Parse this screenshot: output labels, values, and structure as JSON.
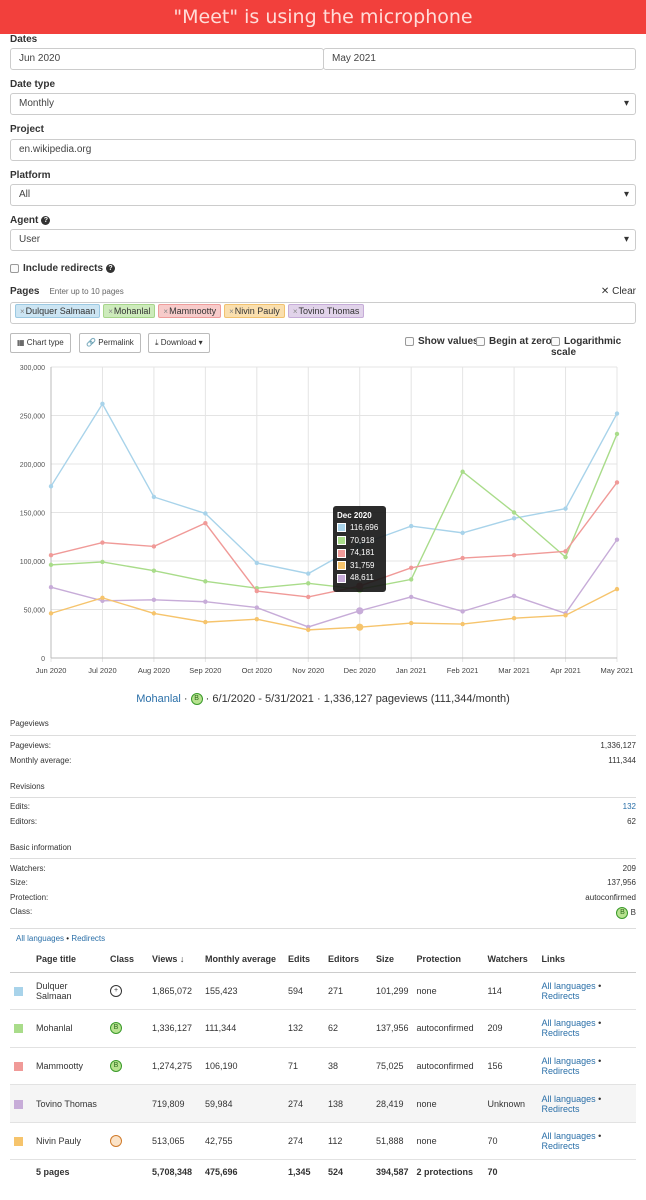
{
  "banner": "\"Meet\" is using the microphone",
  "form": {
    "dates_label": "Dates",
    "start_date": "Jun 2020",
    "end_date": "May 2021",
    "date_type_label": "Date type",
    "date_type_value": "Monthly",
    "project_label": "Project",
    "project_value": "en.wikipedia.org",
    "platform_label": "Platform",
    "platform_value": "All",
    "agent_label": "Agent",
    "agent_value": "User",
    "include_redirects_label": "Include redirects",
    "pages_label": "Pages",
    "pages_hint": "Enter up to 10 pages",
    "clear_label": "Clear",
    "tags": [
      "Dulquer Salmaan",
      "Mohanlal",
      "Mammootty",
      "Nivin Pauly",
      "Tovino Thomas"
    ]
  },
  "toolbar": {
    "chart_type": "Chart type",
    "permalink": "Permalink",
    "download": "Download",
    "show_values": "Show values",
    "begin_at_zero": "Begin at zero",
    "log_scale": "Logarithmic scale"
  },
  "colors": {
    "Dulquer Salmaan": "#a8d3ea",
    "Mohanlal": "#a9dc8a",
    "Mammootty": "#f09a98",
    "Tovino Thomas": "#c7acd8",
    "Nivin Pauly": "#f6c46c"
  },
  "chart_data": {
    "type": "line",
    "categories": [
      "Jun 2020",
      "Jul 2020",
      "Aug 2020",
      "Sep 2020",
      "Oct 2020",
      "Nov 2020",
      "Dec 2020",
      "Jan 2021",
      "Feb 2021",
      "Mar 2021",
      "Apr 2021",
      "May 2021"
    ],
    "ylim": [
      0,
      300000
    ],
    "yticks": [
      "0",
      "50,000",
      "100,000",
      "150,000",
      "200,000",
      "250,000",
      "300,000"
    ],
    "grid": true,
    "series": [
      {
        "name": "Dulquer Salmaan",
        "values": [
          177000,
          262000,
          166000,
          149000,
          98000,
          87000,
          116696,
          136000,
          129000,
          144000,
          154000,
          252000
        ]
      },
      {
        "name": "Mohanlal",
        "values": [
          96000,
          99000,
          90000,
          79000,
          72000,
          77000,
          70918,
          81000,
          192000,
          150000,
          104000,
          231000
        ]
      },
      {
        "name": "Mammootty",
        "values": [
          106000,
          119000,
          115000,
          139000,
          69000,
          63000,
          74181,
          93000,
          103000,
          106000,
          110000,
          181000
        ]
      },
      {
        "name": "Tovino Thomas",
        "values": [
          73000,
          59000,
          60000,
          58000,
          52000,
          32000,
          48611,
          63000,
          48000,
          64000,
          46000,
          122000
        ]
      },
      {
        "name": "Nivin Pauly",
        "values": [
          46000,
          62000,
          46000,
          37000,
          40000,
          29000,
          31759,
          36000,
          35000,
          41000,
          44000,
          71000
        ]
      }
    ],
    "tooltip": {
      "title": "Dec 2020",
      "values": [
        "116,696",
        "70,918",
        "74,181",
        "31,759",
        "48,611"
      ],
      "order": [
        "Dulquer Salmaan",
        "Mohanlal",
        "Mammootty",
        "Nivin Pauly",
        "Tovino Thomas"
      ]
    }
  },
  "summary": {
    "name": "Mohanlal",
    "badge": "B",
    "rest": "· 6/1/2020 - 5/31/2021 · 1,336,127 pageviews (111,344/month)"
  },
  "stats": {
    "pageviews_section": "Pageviews",
    "pageviews_label": "Pageviews:",
    "pageviews_value": "1,336,127",
    "monthly_label": "Monthly average:",
    "monthly_value": "111,344",
    "revisions_section": "Revisions",
    "edits_label": "Edits:",
    "edits_value": "132",
    "editors_label": "Editors:",
    "editors_value": "62",
    "basic_section": "Basic information",
    "watchers_label": "Watchers:",
    "watchers_value": "209",
    "size_label": "Size:",
    "size_value": "137,956",
    "protection_label": "Protection:",
    "protection_value": "autoconfirmed",
    "class_label": "Class:",
    "class_value": "B"
  },
  "links_line": {
    "all_languages": "All languages",
    "sep": "•",
    "redirects": "Redirects"
  },
  "table": {
    "headers": [
      "Page title",
      "Class",
      "Views",
      "Monthly average",
      "Edits",
      "Editors",
      "Size",
      "Protection",
      "Watchers",
      "Links"
    ],
    "rows": [
      {
        "title": "Dulquer Salmaan",
        "class": "+",
        "views": "1,865,072",
        "monthly": "155,423",
        "edits": "594",
        "editors": "271",
        "size": "101,299",
        "protection": "none",
        "watchers": "114"
      },
      {
        "title": "Mohanlal",
        "class": "B",
        "views": "1,336,127",
        "monthly": "111,344",
        "edits": "132",
        "editors": "62",
        "size": "137,956",
        "protection": "autoconfirmed",
        "watchers": "209"
      },
      {
        "title": "Mammootty",
        "class": "B",
        "views": "1,274,275",
        "monthly": "106,190",
        "edits": "71",
        "editors": "38",
        "size": "75,025",
        "protection": "autoconfirmed",
        "watchers": "156"
      },
      {
        "title": "Tovino Thomas",
        "class": "",
        "views": "719,809",
        "monthly": "59,984",
        "edits": "274",
        "editors": "138",
        "size": "28,419",
        "protection": "none",
        "watchers": "Unknown"
      },
      {
        "title": "Nivin Pauly",
        "class": "",
        "views": "513,065",
        "monthly": "42,755",
        "edits": "274",
        "editors": "112",
        "size": "51,888",
        "protection": "none",
        "watchers": "70"
      }
    ],
    "link_all": "All languages",
    "link_sep": "•",
    "link_redirects": "Redirects",
    "footer": {
      "title": "5 pages",
      "views": "5,708,348",
      "monthly": "475,696",
      "edits": "1,345",
      "editors": "524",
      "size": "394,587",
      "protection": "2 protections",
      "watchers": "70"
    }
  }
}
